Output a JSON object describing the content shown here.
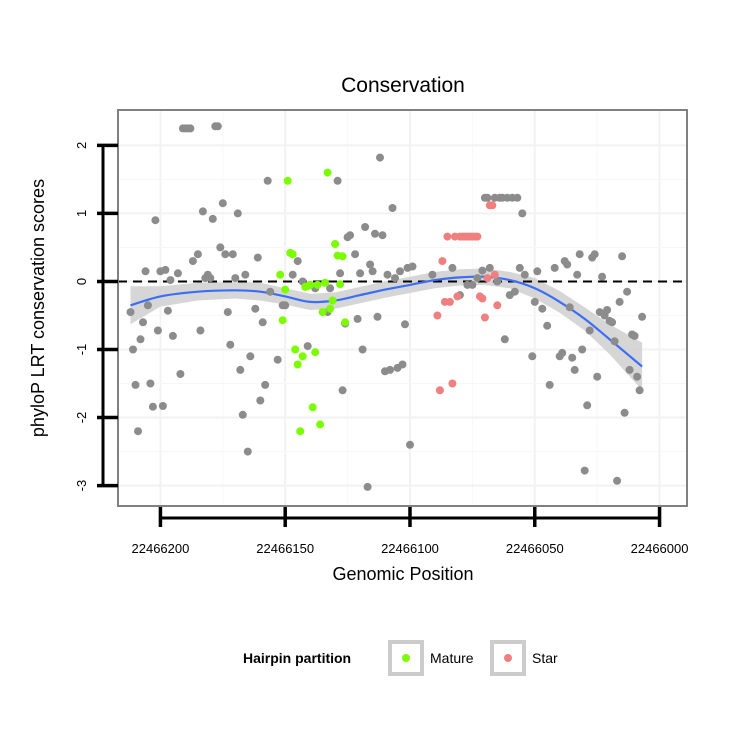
{
  "chart_data": {
    "type": "scatter",
    "title": "Conservation",
    "xlabel": "Genomic Position",
    "ylabel": "phyloP LRT conservation scores",
    "x_reversed": true,
    "xlim": [
      22466217,
      22465989
    ],
    "ylim": [
      -3.3,
      2.52
    ],
    "x_ticks": [
      22466200,
      22466150,
      22466100,
      22466050,
      22466000
    ],
    "x_tick_labels": [
      "22466200",
      "22466150",
      "22466100",
      "22466050",
      "22466000"
    ],
    "y_ticks": [
      2,
      1,
      0,
      -1,
      -2,
      -3
    ],
    "y_tick_labels": [
      "2",
      "1",
      "0",
      "-1",
      "-2",
      "-3"
    ],
    "reference_line": {
      "y": 0,
      "style": "dashed",
      "color": "#000000"
    },
    "grid": true,
    "legend": {
      "title": "Hairpin partition",
      "position": "bottom",
      "entries": [
        {
          "label": "Mature",
          "color": "#7cfc00"
        },
        {
          "label": "Star",
          "color": "#f08080"
        }
      ]
    },
    "colors": {
      "other": "#8c8c8c",
      "Mature": "#7cfc00",
      "Star": "#f08080",
      "smooth": "#3b6ef5",
      "band": "#cfcfcf",
      "panel_border": "#808080"
    },
    "series": [
      {
        "name": "",
        "color": "#8c8c8c",
        "points": [
          [
            22466212,
            -0.45
          ],
          [
            22466211,
            -1.0
          ],
          [
            22466210,
            -1.52
          ],
          [
            22466209,
            -2.2
          ],
          [
            22466208,
            -0.85
          ],
          [
            22466207,
            -0.6
          ],
          [
            22466206,
            0.15
          ],
          [
            22466205,
            -0.35
          ],
          [
            22466204,
            -1.5
          ],
          [
            22466203,
            -1.84
          ],
          [
            22466202,
            0.9
          ],
          [
            22466201,
            -0.72
          ],
          [
            22466200,
            0.15
          ],
          [
            22466199,
            -1.83
          ],
          [
            22466198,
            0.17
          ],
          [
            22466197,
            -0.43
          ],
          [
            22466196,
            0.02
          ],
          [
            22466195,
            -0.8
          ],
          [
            22466193,
            0.12
          ],
          [
            22466192,
            -1.36
          ],
          [
            22466191,
            2.25
          ],
          [
            22466190,
            2.25
          ],
          [
            22466189,
            2.25
          ],
          [
            22466188,
            2.25
          ],
          [
            22466187,
            0.3
          ],
          [
            22466185,
            0.4
          ],
          [
            22466184,
            -0.72
          ],
          [
            22466183,
            1.03
          ],
          [
            22466182,
            0.05
          ],
          [
            22466181,
            0.1
          ],
          [
            22466180,
            0.05
          ],
          [
            22466179,
            0.92
          ],
          [
            22466178,
            2.28
          ],
          [
            22466177,
            2.28
          ],
          [
            22466176,
            0.5
          ],
          [
            22466175,
            1.15
          ],
          [
            22466174,
            0.4
          ],
          [
            22466173,
            -0.45
          ],
          [
            22466172,
            -0.93
          ],
          [
            22466171,
            0.4
          ],
          [
            22466170,
            0.05
          ],
          [
            22466169,
            1.0
          ],
          [
            22466168,
            -1.3
          ],
          [
            22466167,
            -1.96
          ],
          [
            22466166,
            0.1
          ],
          [
            22466165,
            -2.5
          ],
          [
            22466164,
            -1.1
          ],
          [
            22466162,
            -0.4
          ],
          [
            22466161,
            0.35
          ],
          [
            22466160,
            -1.75
          ],
          [
            22466159,
            -0.6
          ],
          [
            22466158,
            -1.52
          ],
          [
            22466157,
            1.48
          ],
          [
            22466156,
            -0.15
          ],
          [
            22466153,
            -1.15
          ],
          [
            22466151,
            -0.35
          ],
          [
            22466150,
            -0.35
          ],
          [
            22466147,
            0.1
          ],
          [
            22466145,
            0.3
          ],
          [
            22466143,
            0.0
          ],
          [
            22466141,
            -0.95
          ],
          [
            22466138,
            -0.1
          ],
          [
            22466133,
            -0.45
          ],
          [
            22466132,
            -0.1
          ],
          [
            22466129,
            1.48
          ],
          [
            22466128,
            0.12
          ],
          [
            22466127,
            -1.6
          ],
          [
            22466126,
            -0.62
          ],
          [
            22466125,
            0.65
          ],
          [
            22466124,
            0.68
          ],
          [
            22466122,
            0.4
          ],
          [
            22466121,
            -0.55
          ],
          [
            22466120,
            0.12
          ],
          [
            22466119,
            -1.0
          ],
          [
            22466118,
            0.8
          ],
          [
            22466117,
            -3.02
          ],
          [
            22466116,
            0.25
          ],
          [
            22466115,
            0.15
          ],
          [
            22466114,
            0.7
          ],
          [
            22466113,
            -0.52
          ],
          [
            22466112,
            1.82
          ],
          [
            22466111,
            0.68
          ],
          [
            22466110,
            -1.32
          ],
          [
            22466109,
            0.1
          ],
          [
            22466108,
            -1.3
          ],
          [
            22466107,
            1.08
          ],
          [
            22466106,
            0.05
          ],
          [
            22466105,
            -1.27
          ],
          [
            22466104,
            0.15
          ],
          [
            22466103,
            -1.22
          ],
          [
            22466102,
            -0.63
          ],
          [
            22466101,
            0.2
          ],
          [
            22466100,
            -2.4
          ],
          [
            22466099,
            0.22
          ],
          [
            22466091,
            0.1
          ],
          [
            22466083,
            0.2
          ],
          [
            22466080,
            -0.2
          ],
          [
            22466077,
            -0.05
          ],
          [
            22466075,
            -0.05
          ],
          [
            22466073,
            0.05
          ],
          [
            22466071,
            0.16
          ],
          [
            22466070,
            1.23
          ],
          [
            22466069,
            1.23
          ],
          [
            22466068,
            0.2
          ],
          [
            22466066,
            1.23
          ],
          [
            22466065,
            0.0
          ],
          [
            22466064,
            1.23
          ],
          [
            22466063,
            1.23
          ],
          [
            22466062,
            -0.85
          ],
          [
            22466061,
            1.23
          ],
          [
            22466060,
            -0.2
          ],
          [
            22466059,
            1.23
          ],
          [
            22466058,
            -0.15
          ],
          [
            22466057,
            1.23
          ],
          [
            22466056,
            0.2
          ],
          [
            22466055,
            1.0
          ],
          [
            22466054,
            0.1
          ],
          [
            22466051,
            -1.1
          ],
          [
            22466050,
            -0.3
          ],
          [
            22466049,
            0.15
          ],
          [
            22466047,
            -0.4
          ],
          [
            22466045,
            -0.65
          ],
          [
            22466044,
            -1.52
          ],
          [
            22466042,
            0.2
          ],
          [
            22466040,
            -1.1
          ],
          [
            22466039,
            -1.05
          ],
          [
            22466038,
            0.3
          ],
          [
            22466037,
            0.25
          ],
          [
            22466036,
            -0.38
          ],
          [
            22466035,
            -1.12
          ],
          [
            22466034,
            -1.3
          ],
          [
            22466033,
            0.1
          ],
          [
            22466032,
            0.4
          ],
          [
            22466031,
            -1.0
          ],
          [
            22466030,
            -2.78
          ],
          [
            22466029,
            -1.82
          ],
          [
            22466028,
            -0.72
          ],
          [
            22466027,
            0.35
          ],
          [
            22466026,
            0.4
          ],
          [
            22466025,
            -1.4
          ],
          [
            22466024,
            -0.45
          ],
          [
            22466023,
            0.07
          ],
          [
            22466022,
            -0.5
          ],
          [
            22466021,
            -0.42
          ],
          [
            22466020,
            -0.58
          ],
          [
            22466019,
            -0.6
          ],
          [
            22466018,
            -0.88
          ],
          [
            22466017,
            -2.93
          ],
          [
            22466016,
            -0.3
          ],
          [
            22466015,
            0.37
          ],
          [
            22466014,
            -1.93
          ],
          [
            22466013,
            -0.15
          ],
          [
            22466012,
            -1.3
          ],
          [
            22466011,
            -0.78
          ],
          [
            22466010,
            -0.8
          ],
          [
            22466009,
            -1.4
          ],
          [
            22466008,
            -1.6
          ],
          [
            22466007,
            -0.52
          ]
        ]
      },
      {
        "name": "Mature",
        "color": "#7cfc00",
        "points": [
          [
            22466152,
            0.1
          ],
          [
            22466151,
            -0.57
          ],
          [
            22466150,
            -0.12
          ],
          [
            22466149,
            1.48
          ],
          [
            22466148,
            0.42
          ],
          [
            22466147,
            0.4
          ],
          [
            22466146,
            -1.0
          ],
          [
            22466145,
            -1.22
          ],
          [
            22466144,
            -2.2
          ],
          [
            22466143,
            -1.1
          ],
          [
            22466142,
            -0.08
          ],
          [
            22466141,
            -0.07
          ],
          [
            22466140,
            -0.05
          ],
          [
            22466139,
            -1.85
          ],
          [
            22466138,
            -1.04
          ],
          [
            22466137,
            -0.05
          ],
          [
            22466136,
            -2.1
          ],
          [
            22466135,
            -0.45
          ],
          [
            22466134,
            -0.02
          ],
          [
            22466133,
            1.6
          ],
          [
            22466132,
            -0.4
          ],
          [
            22466131,
            -0.28
          ],
          [
            22466130,
            0.55
          ],
          [
            22466129,
            0.38
          ],
          [
            22466128,
            -0.04
          ],
          [
            22466127,
            0.37
          ],
          [
            22466126,
            -0.6
          ]
        ]
      },
      {
        "name": "Star",
        "color": "#f08080",
        "points": [
          [
            22466089,
            -0.5
          ],
          [
            22466088,
            -1.6
          ],
          [
            22466087,
            0.3
          ],
          [
            22466086,
            -0.3
          ],
          [
            22466085,
            0.66
          ],
          [
            22466084,
            -0.3
          ],
          [
            22466083,
            -1.5
          ],
          [
            22466082,
            0.66
          ],
          [
            22466081,
            -0.22
          ],
          [
            22466080,
            0.66
          ],
          [
            22466079,
            0.66
          ],
          [
            22466078,
            0.66
          ],
          [
            22466077,
            0.66
          ],
          [
            22466076,
            0.66
          ],
          [
            22466075,
            0.66
          ],
          [
            22466074,
            0.66
          ],
          [
            22466073,
            0.66
          ],
          [
            22466072,
            -0.22
          ],
          [
            22466071,
            -0.25
          ],
          [
            22466070,
            -0.53
          ],
          [
            22466069,
            0.05
          ],
          [
            22466068,
            1.12
          ],
          [
            22466067,
            1.12
          ],
          [
            22466066,
            0.1
          ],
          [
            22466065,
            -0.35
          ]
        ]
      }
    ],
    "smooth": {
      "method": "loess",
      "points": [
        [
          22466212,
          -0.35
        ],
        [
          22466200,
          -0.22
        ],
        [
          22466185,
          -0.15
        ],
        [
          22466170,
          -0.13
        ],
        [
          22466160,
          -0.15
        ],
        [
          22466150,
          -0.22
        ],
        [
          22466140,
          -0.3
        ],
        [
          22466130,
          -0.28
        ],
        [
          22466120,
          -0.2
        ],
        [
          22466110,
          -0.12
        ],
        [
          22466100,
          -0.05
        ],
        [
          22466090,
          0.02
        ],
        [
          22466080,
          0.06
        ],
        [
          22466070,
          0.07
        ],
        [
          22466060,
          0.02
        ],
        [
          22466050,
          -0.1
        ],
        [
          22466040,
          -0.3
        ],
        [
          22466030,
          -0.55
        ],
        [
          22466020,
          -0.85
        ],
        [
          22466007,
          -1.25
        ]
      ],
      "band_halfwidth": [
        0.28,
        0.15,
        0.13,
        0.12,
        0.13,
        0.12,
        0.12,
        0.12,
        0.12,
        0.12,
        0.12,
        0.12,
        0.12,
        0.12,
        0.12,
        0.15,
        0.16,
        0.17,
        0.22,
        0.35
      ]
    }
  }
}
